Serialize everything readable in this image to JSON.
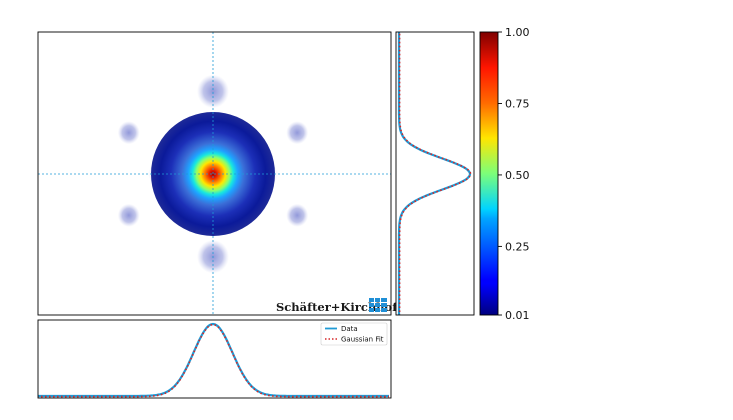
{
  "chart_data": {
    "type": "heatmap",
    "title": "",
    "description_note": "",
    "colorbar": {
      "colormap": "jet",
      "range": [
        0.01,
        1.0
      ],
      "ticks": [
        "1.00",
        "0.75",
        "0.50",
        "0.25",
        "0.01"
      ],
      "tick_values": [
        1.0,
        0.75,
        0.5,
        0.25,
        0.01
      ]
    },
    "beam": {
      "center": [
        0,
        0
      ],
      "xlim": [
        -1,
        1
      ],
      "ylim": [
        -1,
        1
      ],
      "core_sigma": 0.2,
      "halo_radius": 0.33,
      "satellite_radius": 0.68,
      "satellite_count": 6
    },
    "crosshair": {
      "x": 0,
      "y": 0,
      "color": "#1f9bd6"
    },
    "profiles": {
      "horizontal": {
        "center": 0,
        "sigma": 0.11,
        "peak": 1.0
      },
      "vertical": {
        "center": 0,
        "sigma": 0.11,
        "peak": 1.0
      }
    },
    "legend": {
      "placement": "top-right",
      "entries": [
        {
          "label": "Data",
          "color": "#1f9bd6",
          "style": "solid"
        },
        {
          "label": "Gaussian Fit",
          "color": "#d62728",
          "style": "dotted"
        }
      ]
    },
    "logo": {
      "text": "Schäfter+Kirchhoff",
      "color": "#1f8fd6"
    }
  }
}
